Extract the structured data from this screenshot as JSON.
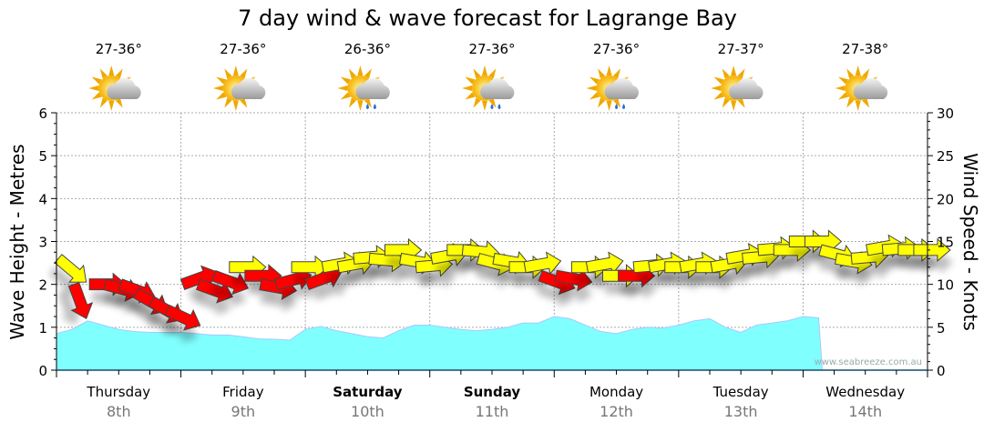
{
  "chart_data": {
    "type": "area",
    "title": "7 day wind & wave forecast for Lagrange Bay",
    "ylabel": "Wave Height - Metres",
    "y2label": "Wind Speed - Knots",
    "ylim": [
      0,
      6
    ],
    "y2lim": [
      0,
      30
    ],
    "yticks": [
      "0",
      "1",
      "2",
      "3",
      "4",
      "5",
      "6"
    ],
    "y2ticks": [
      "0",
      "5",
      "10",
      "15",
      "20",
      "25",
      "30"
    ],
    "grid": true,
    "watermark": "www.seabreeze.com.au",
    "days": [
      {
        "name": "Thursday",
        "date": "8th",
        "bold": false,
        "temp": "27-36°",
        "icon": "partly-cloudy"
      },
      {
        "name": "Friday",
        "date": "9th",
        "bold": false,
        "temp": "27-36°",
        "icon": "partly-cloudy"
      },
      {
        "name": "Saturday",
        "date": "10th",
        "bold": true,
        "temp": "26-36°",
        "icon": "partly-cloudy-rain"
      },
      {
        "name": "Sunday",
        "date": "11th",
        "bold": true,
        "temp": "27-36°",
        "icon": "partly-cloudy-rain"
      },
      {
        "name": "Monday",
        "date": "12th",
        "bold": false,
        "temp": "27-36°",
        "icon": "partly-cloudy-rain"
      },
      {
        "name": "Tuesday",
        "date": "13th",
        "bold": false,
        "temp": "27-37°",
        "icon": "partly-cloudy"
      },
      {
        "name": "Wednesday",
        "date": "14th",
        "bold": false,
        "temp": "27-38°",
        "icon": "partly-cloudy"
      }
    ],
    "wave_series": {
      "name": "Wave Height (m)",
      "color": "#80ffff",
      "step_hours": 3,
      "values": [
        0.85,
        0.95,
        1.15,
        1.05,
        0.95,
        0.9,
        0.88,
        0.88,
        0.88,
        0.85,
        0.82,
        0.82,
        0.78,
        0.73,
        0.72,
        0.7,
        0.95,
        1.02,
        0.92,
        0.85,
        0.78,
        0.75,
        0.92,
        1.05,
        1.05,
        1.0,
        0.95,
        0.92,
        0.95,
        1.0,
        1.1,
        1.1,
        1.25,
        1.2,
        1.05,
        0.9,
        0.85,
        0.95,
        1.0,
        0.98,
        1.05,
        1.15,
        1.2,
        1.0,
        0.88,
        1.05,
        1.1,
        1.15,
        1.25,
        1.22
      ]
    },
    "wind_series": {
      "name": "Wind Speed (knots)",
      "step_hours": 3,
      "points": [
        {
          "kts": 13,
          "dir": 40,
          "c": "#ffff00"
        },
        {
          "kts": 10,
          "dir": 70,
          "c": "#ff0000"
        },
        {
          "kts": 10,
          "dir": 0,
          "c": "#ff0000"
        },
        {
          "kts": 10,
          "dir": 15,
          "c": "#ff0000"
        },
        {
          "kts": 10,
          "dir": 20,
          "c": "#ff0000"
        },
        {
          "kts": 9,
          "dir": 30,
          "c": "#ff0000"
        },
        {
          "kts": 8,
          "dir": 30,
          "c": "#ff0000"
        },
        {
          "kts": 7,
          "dir": 25,
          "c": "#ff0000"
        },
        {
          "kts": 10,
          "dir": -20,
          "c": "#ff0000"
        },
        {
          "kts": 10,
          "dir": 20,
          "c": "#ff0000"
        },
        {
          "kts": 11,
          "dir": 20,
          "c": "#ff0000"
        },
        {
          "kts": 12,
          "dir": 0,
          "c": "#ffff00"
        },
        {
          "kts": 11,
          "dir": 0,
          "c": "#ff0000"
        },
        {
          "kts": 10,
          "dir": 10,
          "c": "#ff0000"
        },
        {
          "kts": 10,
          "dir": -15,
          "c": "#ff0000"
        },
        {
          "kts": 12,
          "dir": 0,
          "c": "#ffff00"
        },
        {
          "kts": 10,
          "dir": -20,
          "c": "#ff0000"
        },
        {
          "kts": 12,
          "dir": -10,
          "c": "#ffff00"
        },
        {
          "kts": 12,
          "dir": -10,
          "c": "#ffff00"
        },
        {
          "kts": 13,
          "dir": -5,
          "c": "#ffff00"
        },
        {
          "kts": 13,
          "dir": 5,
          "c": "#ffff00"
        },
        {
          "kts": 14,
          "dir": 0,
          "c": "#ffff00"
        },
        {
          "kts": 13,
          "dir": 10,
          "c": "#ffff00"
        },
        {
          "kts": 12,
          "dir": -5,
          "c": "#ffff00"
        },
        {
          "kts": 13,
          "dir": -10,
          "c": "#ffff00"
        },
        {
          "kts": 14,
          "dir": 0,
          "c": "#ffff00"
        },
        {
          "kts": 14,
          "dir": 5,
          "c": "#ffff00"
        },
        {
          "kts": 13,
          "dir": 15,
          "c": "#ffff00"
        },
        {
          "kts": 13,
          "dir": 10,
          "c": "#ffff00"
        },
        {
          "kts": 12,
          "dir": 0,
          "c": "#ffff00"
        },
        {
          "kts": 12,
          "dir": -10,
          "c": "#ffff00"
        },
        {
          "kts": 11,
          "dir": 20,
          "c": "#ff0000"
        },
        {
          "kts": 11,
          "dir": 10,
          "c": "#ff0000"
        },
        {
          "kts": 12,
          "dir": 0,
          "c": "#ffff00"
        },
        {
          "kts": 12,
          "dir": -10,
          "c": "#ffff00"
        },
        {
          "kts": 11,
          "dir": 0,
          "c": "#ffff00"
        },
        {
          "kts": 11,
          "dir": 0,
          "c": "#ff0000"
        },
        {
          "kts": 12,
          "dir": -5,
          "c": "#ffff00"
        },
        {
          "kts": 12,
          "dir": -10,
          "c": "#ffff00"
        },
        {
          "kts": 12,
          "dir": 0,
          "c": "#ffff00"
        },
        {
          "kts": 12,
          "dir": -10,
          "c": "#ffff00"
        },
        {
          "kts": 12,
          "dir": 0,
          "c": "#ffff00"
        },
        {
          "kts": 12,
          "dir": -10,
          "c": "#ffff00"
        },
        {
          "kts": 13,
          "dir": -10,
          "c": "#ffff00"
        },
        {
          "kts": 13,
          "dir": -5,
          "c": "#ffff00"
        },
        {
          "kts": 14,
          "dir": -5,
          "c": "#ffff00"
        },
        {
          "kts": 14,
          "dir": 0,
          "c": "#ffff00"
        },
        {
          "kts": 15,
          "dir": 0,
          "c": "#ffff00"
        },
        {
          "kts": 15,
          "dir": 0,
          "c": "#ffff00"
        },
        {
          "kts": 14,
          "dir": 15,
          "c": "#ffff00"
        },
        {
          "kts": 13,
          "dir": 10,
          "c": "#ffff00"
        },
        {
          "kts": 13,
          "dir": -5,
          "c": "#ffff00"
        },
        {
          "kts": 14,
          "dir": -10,
          "c": "#ffff00"
        },
        {
          "kts": 14,
          "dir": -5,
          "c": "#ffff00"
        },
        {
          "kts": 14,
          "dir": 0,
          "c": "#ffff00"
        },
        {
          "kts": 14,
          "dir": 0,
          "c": "#ffff00"
        }
      ]
    }
  }
}
